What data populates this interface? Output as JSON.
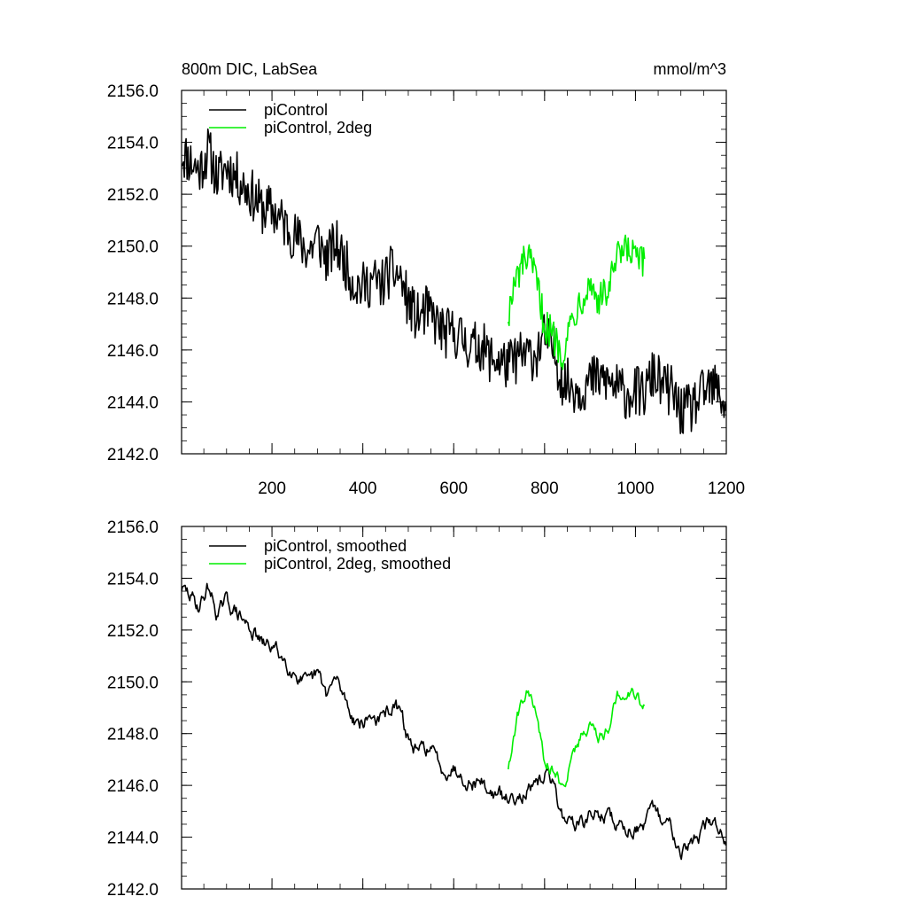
{
  "header": {
    "title": "800m DIC, LabSea",
    "units": "mmol/m^3"
  },
  "colors": {
    "series_black": "#000000",
    "series_green": "#00ee00",
    "axis": "#000000",
    "background": "#ffffff"
  },
  "chart_data": [
    {
      "type": "line",
      "title": "800m DIC, LabSea",
      "units_label": "mmol/m^3",
      "xlabel": "",
      "ylabel": "",
      "xlim": [
        1,
        1200
      ],
      "ylim": [
        2142.0,
        2156.0
      ],
      "x_ticks": [
        200,
        400,
        600,
        800,
        1000,
        1200
      ],
      "x_tick_labels": [
        "200",
        "400",
        "600",
        "800",
        "1000",
        "1200"
      ],
      "y_ticks": [
        2142.0,
        2144.0,
        2146.0,
        2148.0,
        2150.0,
        2152.0,
        2154.0,
        2156.0
      ],
      "y_tick_labels": [
        "2142.0",
        "2144.0",
        "2146.0",
        "2148.0",
        "2150.0",
        "2152.0",
        "2154.0",
        "2156.0"
      ],
      "grid": false,
      "legend_position": "top-left",
      "series": [
        {
          "name": "piControl",
          "color": "#000000",
          "x": [
            1,
            20,
            40,
            60,
            80,
            100,
            120,
            140,
            160,
            180,
            200,
            220,
            240,
            260,
            280,
            300,
            320,
            340,
            360,
            380,
            400,
            420,
            440,
            460,
            480,
            500,
            520,
            540,
            560,
            580,
            600,
            620,
            640,
            660,
            680,
            700,
            720,
            740,
            760,
            780,
            800,
            820,
            840,
            860,
            880,
            900,
            920,
            940,
            960,
            980,
            1000,
            1020,
            1040,
            1060,
            1080,
            1100,
            1120,
            1140,
            1160,
            1180,
            1200
          ],
          "y": [
            2153.6,
            2153.3,
            2152.9,
            2153.7,
            2152.6,
            2153.1,
            2152.7,
            2152.3,
            2151.9,
            2151.4,
            2151.4,
            2151.0,
            2150.6,
            2150.2,
            2149.8,
            2150.3,
            2149.5,
            2150.1,
            2149.4,
            2148.6,
            2148.4,
            2148.7,
            2148.5,
            2149.0,
            2148.9,
            2147.8,
            2147.2,
            2147.5,
            2147.1,
            2146.6,
            2146.7,
            2146.4,
            2146.1,
            2146.2,
            2145.7,
            2145.6,
            2145.4,
            2145.7,
            2145.8,
            2145.8,
            2146.5,
            2146.0,
            2144.8,
            2144.6,
            2144.5,
            2144.8,
            2144.9,
            2144.8,
            2144.5,
            2144.3,
            2144.4,
            2144.3,
            2145.1,
            2144.6,
            2144.4,
            2143.6,
            2143.7,
            2144.1,
            2144.5,
            2144.5,
            2143.8
          ],
          "raw_noise_amplitude": 1.0
        },
        {
          "name": "piControl, 2deg",
          "color": "#00ee00",
          "x": [
            720,
            740,
            760,
            780,
            800,
            820,
            840,
            860,
            880,
            900,
            920,
            940,
            960,
            980,
            1000,
            1020
          ],
          "y": [
            2147.4,
            2148.8,
            2149.6,
            2148.8,
            2147.0,
            2146.5,
            2145.9,
            2147.2,
            2148.0,
            2148.6,
            2147.9,
            2148.3,
            2149.5,
            2149.8,
            2149.6,
            2149.2
          ],
          "raw_noise_amplitude": 0.7
        }
      ]
    },
    {
      "type": "line",
      "title": "",
      "xlabel": "",
      "ylabel": "",
      "xlim": [
        1,
        1200
      ],
      "ylim": [
        2142.0,
        2156.0
      ],
      "y_ticks": [
        2142.0,
        2144.0,
        2146.0,
        2148.0,
        2150.0,
        2152.0,
        2154.0,
        2156.0
      ],
      "y_tick_labels": [
        "2142.0",
        "2144.0",
        "2146.0",
        "2148.0",
        "2150.0",
        "2152.0",
        "2154.0",
        "2156.0"
      ],
      "grid": false,
      "legend_position": "top-left",
      "series": [
        {
          "name": "piControl, smoothed",
          "color": "#000000",
          "x": [
            1,
            20,
            40,
            60,
            80,
            100,
            120,
            140,
            160,
            180,
            200,
            220,
            240,
            260,
            280,
            300,
            320,
            340,
            360,
            380,
            400,
            420,
            440,
            460,
            480,
            500,
            520,
            540,
            560,
            580,
            600,
            620,
            640,
            660,
            680,
            700,
            720,
            740,
            760,
            780,
            800,
            820,
            840,
            860,
            880,
            900,
            920,
            940,
            960,
            980,
            1000,
            1020,
            1040,
            1060,
            1080,
            1100,
            1120,
            1140,
            1160,
            1180,
            1200
          ],
          "y": [
            2153.6,
            2153.3,
            2152.9,
            2153.7,
            2152.6,
            2153.1,
            2152.7,
            2152.3,
            2151.9,
            2151.4,
            2151.4,
            2151.0,
            2150.6,
            2150.2,
            2149.8,
            2150.3,
            2149.5,
            2150.1,
            2149.4,
            2148.6,
            2148.4,
            2148.7,
            2148.5,
            2149.0,
            2148.9,
            2147.8,
            2147.2,
            2147.5,
            2147.1,
            2146.6,
            2146.7,
            2146.4,
            2146.1,
            2146.2,
            2145.7,
            2145.6,
            2145.4,
            2145.7,
            2145.8,
            2145.8,
            2146.5,
            2146.0,
            2144.8,
            2144.6,
            2144.5,
            2144.8,
            2144.9,
            2144.8,
            2144.5,
            2144.3,
            2144.4,
            2144.3,
            2145.1,
            2144.6,
            2144.4,
            2143.6,
            2143.7,
            2144.1,
            2144.5,
            2144.5,
            2143.8
          ],
          "raw_noise_amplitude": 0.25
        },
        {
          "name": "piControl, 2deg, smoothed",
          "color": "#00ee00",
          "x": [
            720,
            740,
            760,
            780,
            800,
            820,
            840,
            860,
            880,
            900,
            920,
            940,
            960,
            980,
            1000,
            1020
          ],
          "y": [
            2146.7,
            2148.6,
            2149.8,
            2148.8,
            2147.0,
            2146.6,
            2145.9,
            2147.0,
            2147.9,
            2148.4,
            2147.8,
            2148.3,
            2149.4,
            2149.7,
            2149.6,
            2149.0
          ],
          "raw_noise_amplitude": 0.2
        }
      ]
    }
  ]
}
